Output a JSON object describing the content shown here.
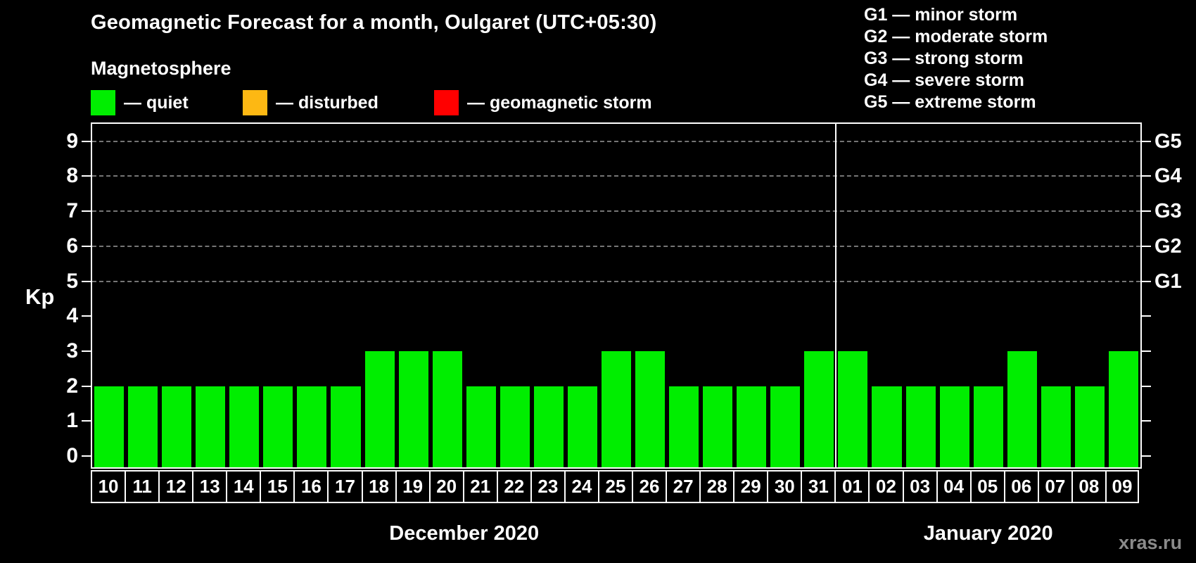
{
  "header": {
    "title": "Geomagnetic Forecast for a month, Oulgaret (UTC+05:30)",
    "subtitle": "Magnetosphere",
    "legend": [
      {
        "name": "quiet",
        "label": "— quiet",
        "color": "#00ee00"
      },
      {
        "name": "disturbed",
        "label": "— disturbed",
        "color": "#fdb813"
      },
      {
        "name": "storm",
        "label": "— geomagnetic storm",
        "color": "#ff0000"
      }
    ],
    "g_legend": [
      "G1 — minor storm",
      "G2 — moderate storm",
      "G3 — strong storm",
      "G4 — severe storm",
      "G5 — extreme storm"
    ]
  },
  "chart_data": {
    "type": "bar",
    "title": "Geomagnetic Forecast for a month, Oulgaret (UTC+05:30)",
    "ylabel": "Kp",
    "ylim": [
      0,
      9.5
    ],
    "grid_on": true,
    "grid_kp": [
      5,
      6,
      7,
      8,
      9
    ],
    "grid_color": "#8a8a8a",
    "left_ticks": [
      0,
      1,
      2,
      3,
      4,
      5,
      6,
      7,
      8,
      9
    ],
    "right_scale": [
      {
        "label": "G1",
        "kp": 5
      },
      {
        "label": "G2",
        "kp": 6
      },
      {
        "label": "G3",
        "kp": 7
      },
      {
        "label": "G4",
        "kp": 8
      },
      {
        "label": "G5",
        "kp": 9
      }
    ],
    "categories": [
      "10",
      "11",
      "12",
      "13",
      "14",
      "15",
      "16",
      "17",
      "18",
      "19",
      "20",
      "21",
      "22",
      "23",
      "24",
      "25",
      "26",
      "27",
      "28",
      "29",
      "30",
      "31",
      "01",
      "02",
      "03",
      "04",
      "05",
      "06",
      "07",
      "08",
      "09"
    ],
    "values": [
      2,
      2,
      2,
      2,
      2,
      2,
      2,
      2,
      3,
      3,
      3,
      2,
      2,
      2,
      2,
      3,
      3,
      2,
      2,
      2,
      2,
      3,
      3,
      2,
      2,
      2,
      2,
      3,
      2,
      2,
      3
    ],
    "bar_color": "#00ee00",
    "divider_after_index": 21,
    "months": [
      {
        "label": "December 2020",
        "start": 0,
        "end": 21
      },
      {
        "label": "January 2020",
        "start": 22,
        "end": 30
      }
    ]
  },
  "footer": {
    "watermark": "xras.ru"
  }
}
